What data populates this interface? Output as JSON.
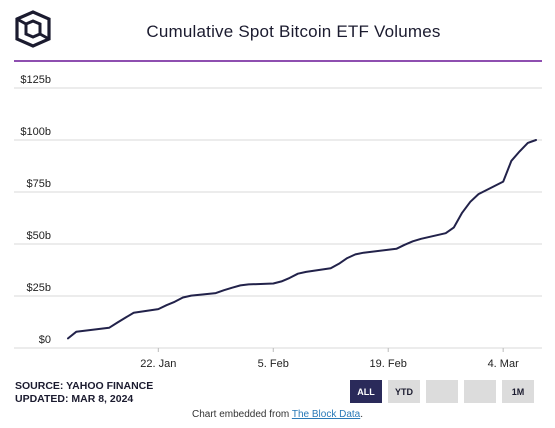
{
  "header": {
    "title": "Cumulative Spot Bitcoin ETF Volumes"
  },
  "chart_data": {
    "type": "line",
    "title": "Cumulative Spot Bitcoin ETF Volumes",
    "xlabel": "",
    "ylabel": "",
    "x_ticks": [
      "22. Jan",
      "5. Feb",
      "19. Feb",
      "4. Mar"
    ],
    "y_ticks": [
      "$0",
      "$25b",
      "$50b",
      "$75b",
      "$100b",
      "$125b"
    ],
    "ylim": [
      0,
      125
    ],
    "grid": "horizontal",
    "line_color": "#22224a",
    "series": [
      {
        "x": [
          "2024-01-11",
          "2024-01-12",
          "2024-01-16",
          "2024-01-17",
          "2024-01-18",
          "2024-01-19",
          "2024-01-22",
          "2024-01-23",
          "2024-01-24",
          "2024-01-25",
          "2024-01-26",
          "2024-01-29",
          "2024-01-30",
          "2024-01-31",
          "2024-02-01",
          "2024-02-02",
          "2024-02-05",
          "2024-02-06",
          "2024-02-07",
          "2024-02-08",
          "2024-02-09",
          "2024-02-12",
          "2024-02-13",
          "2024-02-14",
          "2024-02-15",
          "2024-02-16",
          "2024-02-20",
          "2024-02-21",
          "2024-02-22",
          "2024-02-23",
          "2024-02-26",
          "2024-02-27",
          "2024-02-28",
          "2024-02-29",
          "2024-03-01",
          "2024-03-04",
          "2024-03-05",
          "2024-03-06",
          "2024-03-07",
          "2024-03-08"
        ],
        "values": [
          4.6,
          7.8,
          9.7,
          12.2,
          14.6,
          16.9,
          18.7,
          20.6,
          22.2,
          24.3,
          25.2,
          26.4,
          27.8,
          29.0,
          30.1,
          30.6,
          31.0,
          32.0,
          33.7,
          35.7,
          36.6,
          38.3,
          40.5,
          43.2,
          45.0,
          45.8,
          47.7,
          49.6,
          51.3,
          52.5,
          55.2,
          58.0,
          65.0,
          70.3,
          74.0,
          80.0,
          90.0,
          94.5,
          98.6,
          100.0
        ]
      }
    ]
  },
  "footer": {
    "source": "SOURCE: YAHOO FINANCE",
    "updated": "UPDATED: MAR 8, 2024",
    "buttons": [
      "ALL",
      "YTD",
      "",
      "",
      "1M"
    ],
    "active_button": "ALL",
    "embed_text": "Chart embedded from ",
    "embed_link": "The Block Data",
    "embed_end": "."
  }
}
